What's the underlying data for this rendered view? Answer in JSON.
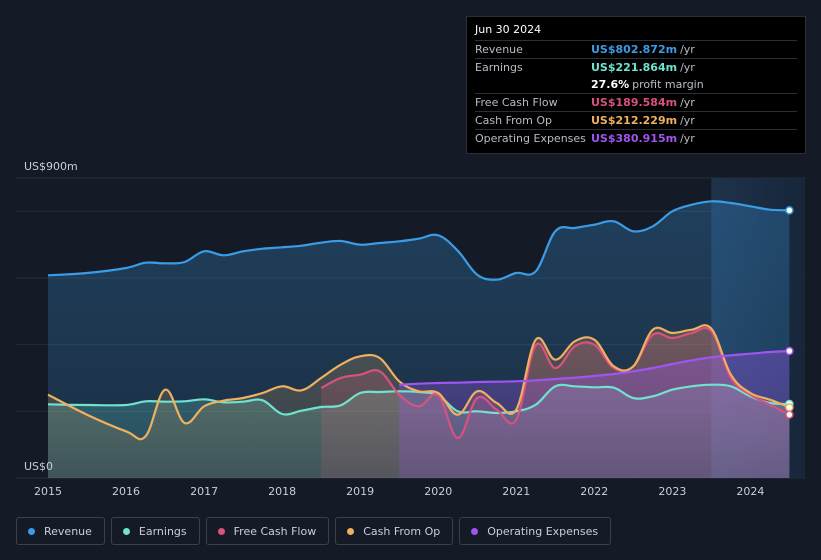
{
  "tooltip": {
    "date": "Jun 30 2024",
    "rows": [
      {
        "label": "Revenue",
        "value": "US$802.872m",
        "unit": "/yr",
        "color": "#3b9ce6"
      },
      {
        "label": "Earnings",
        "value": "US$221.864m",
        "unit": "/yr",
        "color": "#6fe3cf"
      },
      {
        "label": "",
        "value": "27.6%",
        "unit": "profit margin",
        "color": "#ffffff"
      },
      {
        "label": "Free Cash Flow",
        "value": "US$189.584m",
        "unit": "/yr",
        "color": "#d9527e"
      },
      {
        "label": "Cash From Op",
        "value": "US$212.229m",
        "unit": "/yr",
        "color": "#f0b060"
      },
      {
        "label": "Operating Expenses",
        "value": "US$380.915m",
        "unit": "/yr",
        "color": "#a055f0"
      }
    ]
  },
  "legend": [
    {
      "label": "Revenue",
      "color": "#3b9ce6"
    },
    {
      "label": "Earnings",
      "color": "#6fe3cf"
    },
    {
      "label": "Free Cash Flow",
      "color": "#d9527e"
    },
    {
      "label": "Cash From Op",
      "color": "#f0b060"
    },
    {
      "label": "Operating Expenses",
      "color": "#a055f0"
    }
  ],
  "chart_data": {
    "type": "area",
    "y_top_label": "US$900m",
    "y_bottom_label": "US$0",
    "ylim": [
      0,
      900
    ],
    "xlim": [
      2015,
      2024.7
    ],
    "x_ticks": [
      2015,
      2016,
      2017,
      2018,
      2019,
      2020,
      2021,
      2022,
      2023,
      2024
    ],
    "x_tick_labels": [
      "2015",
      "2016",
      "2017",
      "2018",
      "2019",
      "2020",
      "2021",
      "2022",
      "2023",
      "2024"
    ],
    "forecast_start": 2023.5,
    "series": [
      {
        "name": "Revenue",
        "color": "#3b9ce6",
        "start": 2015,
        "x": [
          2015,
          2015.5,
          2016,
          2016.25,
          2016.5,
          2016.75,
          2017,
          2017.25,
          2017.5,
          2017.75,
          2018,
          2018.25,
          2018.5,
          2018.75,
          2019,
          2019.25,
          2019.5,
          2019.75,
          2020,
          2020.25,
          2020.5,
          2020.75,
          2021,
          2021.25,
          2021.5,
          2021.75,
          2022,
          2022.25,
          2022.5,
          2022.75,
          2023,
          2023.25,
          2023.5,
          2023.75,
          2024,
          2024.25,
          2024.5
        ],
        "y": [
          608,
          615,
          630,
          646,
          644,
          648,
          680,
          668,
          680,
          688,
          692,
          697,
          706,
          711,
          700,
          705,
          710,
          718,
          728,
          682,
          610,
          595,
          615,
          620,
          740,
          750,
          760,
          770,
          740,
          755,
          800,
          820,
          830,
          825,
          815,
          805,
          803
        ]
      },
      {
        "name": "Earnings",
        "color": "#6fe3cf",
        "start": 2015,
        "x": [
          2015,
          2015.5,
          2016,
          2016.25,
          2016.5,
          2016.75,
          2017,
          2017.25,
          2017.5,
          2017.75,
          2018,
          2018.25,
          2018.5,
          2018.75,
          2019,
          2019.25,
          2019.5,
          2019.75,
          2020,
          2020.25,
          2020.5,
          2020.75,
          2021,
          2021.25,
          2021.5,
          2021.75,
          2022,
          2022.25,
          2022.5,
          2022.75,
          2023,
          2023.25,
          2023.5,
          2023.75,
          2024,
          2024.25,
          2024.5
        ],
        "y": [
          221,
          219,
          219,
          230,
          229,
          230,
          236,
          227,
          229,
          233,
          192,
          202,
          213,
          218,
          255,
          258,
          260,
          258,
          248,
          200,
          200,
          195,
          200,
          220,
          275,
          275,
          272,
          271,
          240,
          245,
          265,
          275,
          280,
          275,
          245,
          225,
          222
        ]
      },
      {
        "name": "Free Cash Flow",
        "color": "#d9527e",
        "start": 2018.5,
        "x": [
          2018.5,
          2018.75,
          2019,
          2019.25,
          2019.5,
          2019.75,
          2020,
          2020.25,
          2020.5,
          2020.75,
          2021,
          2021.25,
          2021.5,
          2021.75,
          2022,
          2022.25,
          2022.5,
          2022.75,
          2023,
          2023.25,
          2023.5,
          2023.75,
          2024,
          2024.25,
          2024.5
        ],
        "y": [
          270,
          300,
          310,
          320,
          250,
          215,
          248,
          120,
          240,
          205,
          175,
          398,
          330,
          395,
          400,
          330,
          335,
          430,
          420,
          435,
          440,
          300,
          250,
          220,
          190
        ]
      },
      {
        "name": "Cash From Op",
        "color": "#f0b060",
        "start": 2015,
        "x": [
          2015,
          2015.5,
          2016,
          2016.25,
          2016.5,
          2016.75,
          2017,
          2017.25,
          2017.5,
          2017.75,
          2018,
          2018.25,
          2018.5,
          2018.75,
          2019,
          2019.25,
          2019.5,
          2019.75,
          2020,
          2020.25,
          2020.5,
          2020.75,
          2021,
          2021.25,
          2021.5,
          2021.75,
          2022,
          2022.25,
          2022.5,
          2022.75,
          2023,
          2023.25,
          2023.5,
          2023.75,
          2024,
          2024.25,
          2024.5
        ],
        "y": [
          250,
          190,
          140,
          125,
          265,
          165,
          215,
          232,
          240,
          255,
          275,
          263,
          300,
          340,
          365,
          360,
          290,
          260,
          255,
          190,
          260,
          225,
          205,
          415,
          355,
          410,
          415,
          335,
          335,
          445,
          435,
          445,
          448,
          310,
          255,
          235,
          212
        ]
      },
      {
        "name": "Operating Expenses",
        "color": "#a055f0",
        "start": 2019.5,
        "x": [
          2019.5,
          2019.75,
          2020,
          2020.25,
          2020.5,
          2020.75,
          2021,
          2021.25,
          2021.5,
          2021.75,
          2022,
          2022.25,
          2022.5,
          2022.75,
          2023,
          2023.25,
          2023.5,
          2023.75,
          2024,
          2024.25,
          2024.5
        ],
        "y": [
          280,
          283,
          285,
          286,
          288,
          289,
          290,
          293,
          297,
          301,
          306,
          312,
          320,
          330,
          342,
          353,
          362,
          368,
          373,
          378,
          381
        ]
      }
    ]
  }
}
